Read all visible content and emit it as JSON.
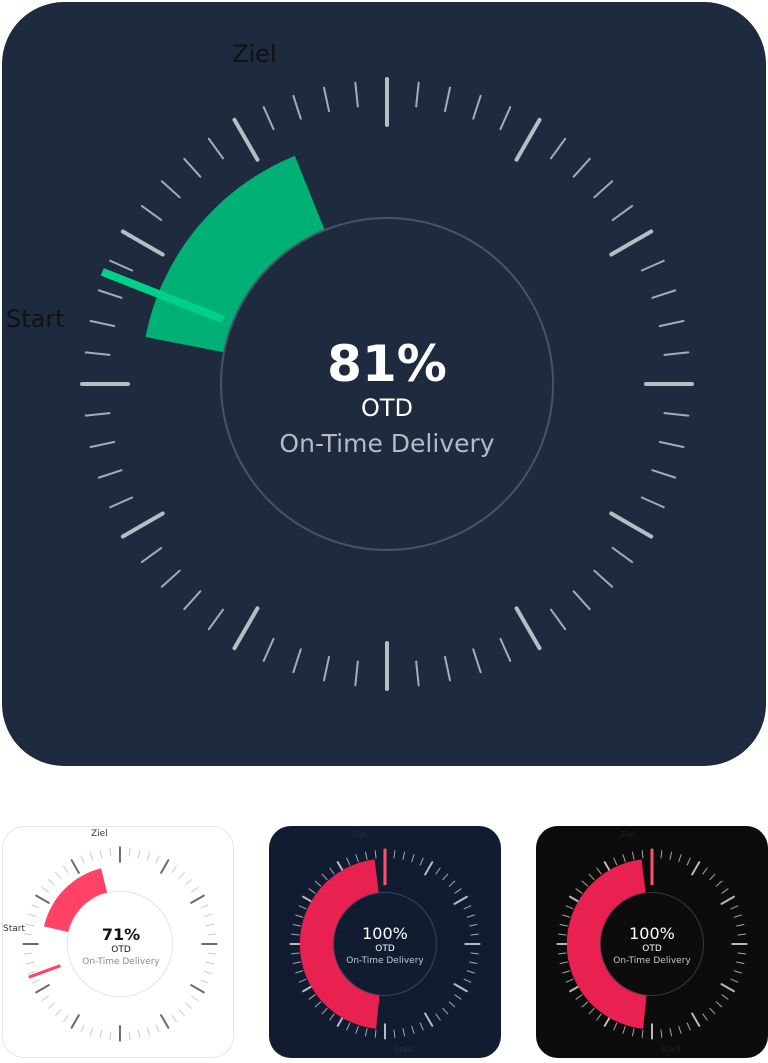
{
  "widgets": [
    {
      "id": "main",
      "value": "81%",
      "unit": "OTD",
      "subtitle": "On-Time Delivery",
      "target_label": "Ziel",
      "start_label": "Start",
      "theme": "dark-navy",
      "accent": "#00b074",
      "needle_color": "#00d08a"
    },
    {
      "id": "w1",
      "value": "71%",
      "unit": "OTD",
      "subtitle": "On-Time Delivery",
      "target_label": "Ziel",
      "start_label": "Start",
      "theme": "light",
      "accent": "#ff4266",
      "needle_color": "#ff4266"
    },
    {
      "id": "w2",
      "value": "100%",
      "unit": "OTD",
      "subtitle": "On-Time Delivery",
      "target_label": "Ziel",
      "start_label": "Start",
      "theme": "navy",
      "accent": "#e92150",
      "needle_color": "#ff4d6d"
    },
    {
      "id": "w3",
      "value": "100%",
      "unit": "OTD",
      "subtitle": "On-Time Delivery",
      "target_label": "Ziel",
      "start_label": "Start",
      "theme": "black",
      "accent": "#e92150",
      "needle_color": "#ff4d6d"
    }
  ]
}
